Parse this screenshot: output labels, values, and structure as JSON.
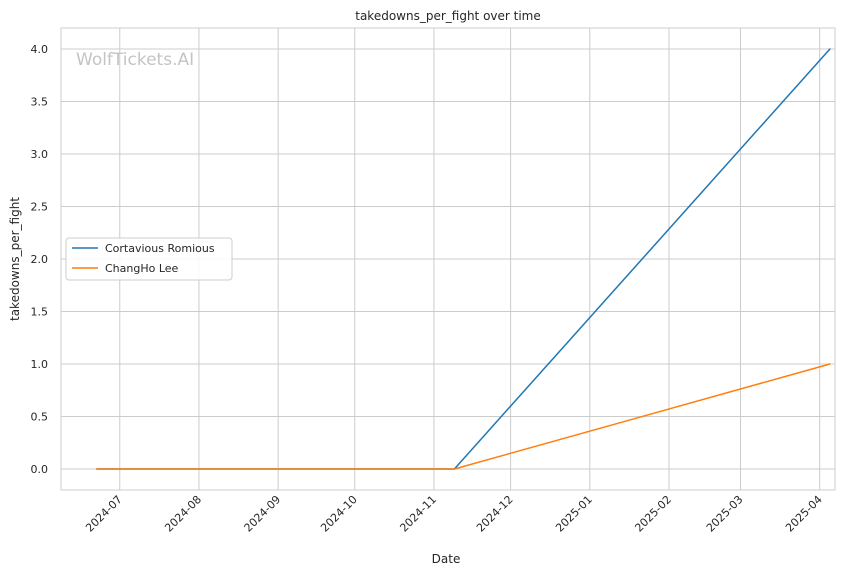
{
  "chart_data": {
    "type": "line",
    "title": "takedowns_per_fight over time",
    "xlabel": "Date",
    "ylabel": "takedowns_per_fight",
    "watermark": "WolfTickets.AI",
    "x_range": [
      "2024-06-08",
      "2025-04-07"
    ],
    "ylim": [
      -0.2,
      4.2
    ],
    "x_ticks": [
      {
        "date": "2024-07-01",
        "label": "2024-07"
      },
      {
        "date": "2024-08-01",
        "label": "2024-08"
      },
      {
        "date": "2024-09-01",
        "label": "2024-09"
      },
      {
        "date": "2024-10-01",
        "label": "2024-10"
      },
      {
        "date": "2024-11-01",
        "label": "2024-11"
      },
      {
        "date": "2024-12-01",
        "label": "2024-12"
      },
      {
        "date": "2025-01-01",
        "label": "2025-01"
      },
      {
        "date": "2025-02-01",
        "label": "2025-02"
      },
      {
        "date": "2025-03-01",
        "label": "2025-03"
      },
      {
        "date": "2025-04-01",
        "label": "2025-04"
      }
    ],
    "y_ticks": [
      {
        "value": 0.0,
        "label": "0.0"
      },
      {
        "value": 0.5,
        "label": "0.5"
      },
      {
        "value": 1.0,
        "label": "1.0"
      },
      {
        "value": 1.5,
        "label": "1.5"
      },
      {
        "value": 2.0,
        "label": "2.0"
      },
      {
        "value": 2.5,
        "label": "2.5"
      },
      {
        "value": 3.0,
        "label": "3.0"
      },
      {
        "value": 3.5,
        "label": "3.5"
      },
      {
        "value": 4.0,
        "label": "4.0"
      }
    ],
    "grid": true,
    "legend_position": "center-left",
    "series": [
      {
        "name": "Cortavious Romious",
        "color": "#1f77b4",
        "points": [
          {
            "x": "2024-06-22",
            "y": 0.0
          },
          {
            "x": "2024-11-09",
            "y": 0.0
          },
          {
            "x": "2025-04-05",
            "y": 4.0
          }
        ]
      },
      {
        "name": "ChangHo Lee",
        "color": "#ff7f0e",
        "points": [
          {
            "x": "2024-06-22",
            "y": 0.0
          },
          {
            "x": "2024-11-09",
            "y": 0.0
          },
          {
            "x": "2025-04-05",
            "y": 1.0
          }
        ]
      }
    ]
  }
}
